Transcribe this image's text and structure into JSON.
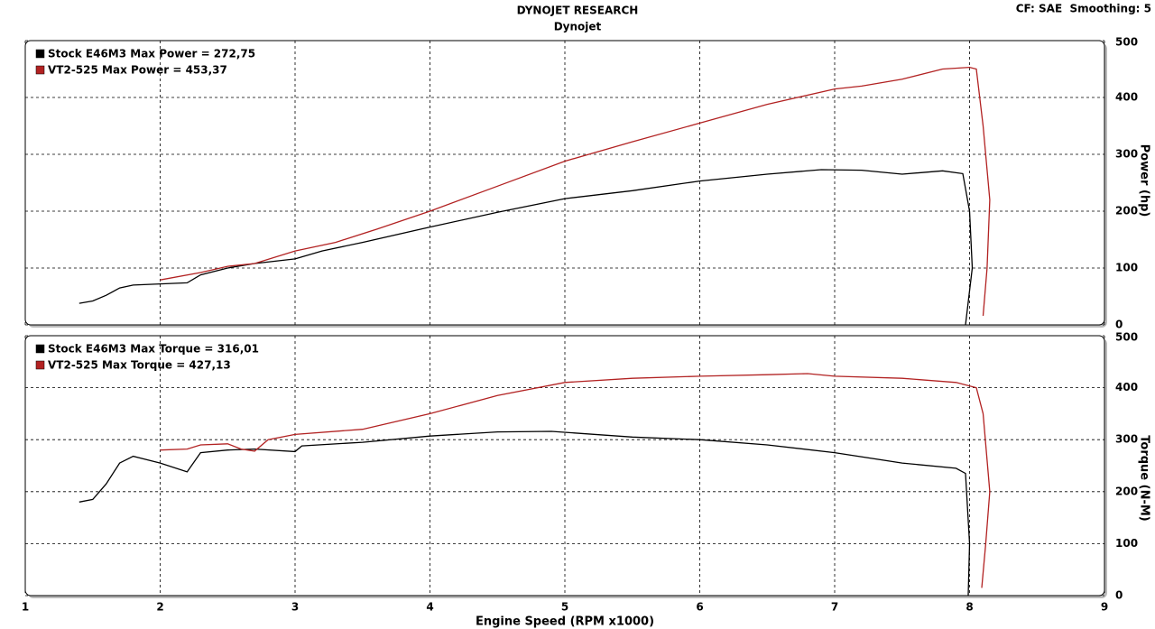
{
  "chart_data": [
    {
      "type": "line",
      "title": "DYNOJET RESEARCH",
      "subtitle": "Dynojet",
      "note": "CF: SAE  Smoothing: 5",
      "ylabel": "Power (hp)",
      "xlim": [
        1,
        9
      ],
      "xticks": [
        1,
        2,
        3,
        4,
        5,
        6,
        7,
        8,
        9
      ],
      "ylim": [
        0,
        500
      ],
      "yticks": [
        0,
        100,
        200,
        300,
        400,
        500
      ],
      "grid": true,
      "legend": "upper left",
      "series": [
        {
          "name": "Stock E46M3 Max Power = 272,75",
          "color": "#000000",
          "x": [
            1.4,
            1.5,
            1.6,
            1.7,
            1.8,
            2.0,
            2.2,
            2.3,
            2.5,
            2.7,
            3.0,
            3.2,
            3.5,
            4.0,
            4.5,
            5.0,
            5.5,
            6.0,
            6.5,
            6.9,
            7.2,
            7.5,
            7.8,
            7.95,
            8.0,
            8.02,
            7.97
          ],
          "values": [
            38,
            42,
            52,
            65,
            70,
            72,
            74,
            88,
            100,
            108,
            116,
            130,
            145,
            172,
            198,
            222,
            236,
            253,
            265,
            273,
            272,
            265,
            271,
            266,
            200,
            100,
            0
          ]
        },
        {
          "name": "VT2-525 Max Power = 453,37",
          "color": "#b22222",
          "x": [
            2.0,
            2.3,
            2.5,
            2.7,
            3.0,
            3.3,
            3.6,
            4.0,
            4.5,
            5.0,
            5.5,
            6.0,
            6.5,
            7.0,
            7.2,
            7.5,
            7.8,
            8.0,
            8.05,
            8.1,
            8.15,
            8.13,
            8.1
          ],
          "values": [
            79,
            92,
            103,
            108,
            130,
            145,
            168,
            200,
            244,
            288,
            322,
            355,
            388,
            415,
            420,
            432,
            450,
            453,
            450,
            350,
            220,
            100,
            16
          ]
        }
      ]
    },
    {
      "type": "line",
      "ylabel": "Torque (N-M)",
      "xlabel": "Engine Speed (RPM x1000)",
      "xlim": [
        1,
        9
      ],
      "xticks": [
        1,
        2,
        3,
        4,
        5,
        6,
        7,
        8,
        9
      ],
      "ylim": [
        0,
        500
      ],
      "yticks": [
        0,
        100,
        200,
        300,
        400,
        500
      ],
      "grid": true,
      "legend": "upper left",
      "series": [
        {
          "name": "Stock E46M3 Max Torque = 316,01",
          "color": "#000000",
          "x": [
            1.4,
            1.5,
            1.6,
            1.7,
            1.8,
            2.0,
            2.2,
            2.3,
            2.5,
            2.7,
            3.0,
            3.05,
            3.5,
            4.0,
            4.5,
            4.9,
            5.5,
            6.0,
            6.5,
            7.0,
            7.5,
            7.9,
            7.97,
            8.0,
            7.99
          ],
          "values": [
            180,
            185,
            215,
            255,
            268,
            255,
            238,
            275,
            280,
            282,
            277,
            288,
            295,
            307,
            315,
            316,
            305,
            300,
            290,
            275,
            255,
            245,
            235,
            100,
            0
          ]
        },
        {
          "name": "VT2-525 Max Torque = 427,13",
          "color": "#b22222",
          "x": [
            2.0,
            2.2,
            2.3,
            2.5,
            2.6,
            2.7,
            2.8,
            3.0,
            3.5,
            4.0,
            4.5,
            5.0,
            5.5,
            6.0,
            6.5,
            6.8,
            7.0,
            7.5,
            7.9,
            8.05,
            8.1,
            8.15,
            8.12,
            8.09
          ],
          "values": [
            280,
            282,
            290,
            292,
            282,
            278,
            300,
            310,
            320,
            350,
            385,
            410,
            418,
            422,
            425,
            427,
            422,
            418,
            410,
            400,
            350,
            200,
            100,
            15
          ]
        }
      ]
    }
  ]
}
